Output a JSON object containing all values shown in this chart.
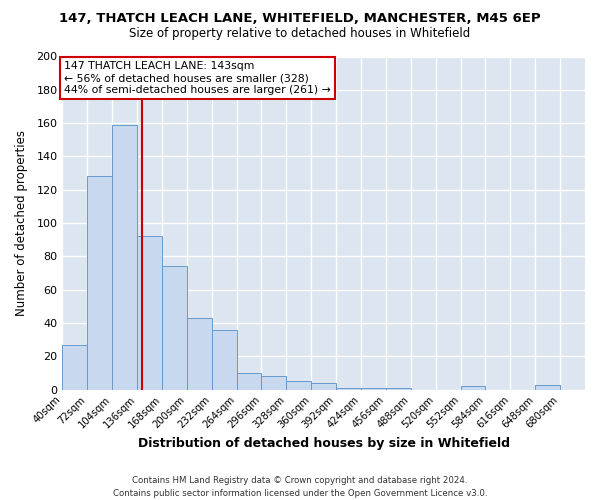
{
  "title": "147, THATCH LEACH LANE, WHITEFIELD, MANCHESTER, M45 6EP",
  "subtitle": "Size of property relative to detached houses in Whitefield",
  "xlabel": "Distribution of detached houses by size in Whitefield",
  "ylabel": "Number of detached properties",
  "bar_color": "#c8d8ee",
  "bar_edge_color": "#6699cc",
  "bin_edges": [
    40,
    72,
    104,
    136,
    168,
    200,
    232,
    264,
    296,
    328,
    360,
    392,
    424,
    456,
    488,
    520,
    552,
    584,
    616,
    648,
    680
  ],
  "bin_labels": [
    "40sqm",
    "72sqm",
    "104sqm",
    "136sqm",
    "168sqm",
    "200sqm",
    "232sqm",
    "264sqm",
    "296sqm",
    "328sqm",
    "360sqm",
    "392sqm",
    "424sqm",
    "456sqm",
    "488sqm",
    "520sqm",
    "552sqm",
    "584sqm",
    "616sqm",
    "648sqm",
    "680sqm"
  ],
  "counts": [
    27,
    128,
    159,
    92,
    74,
    43,
    36,
    10,
    8,
    5,
    4,
    1,
    1,
    1,
    0,
    0,
    2,
    0,
    0,
    3
  ],
  "vline_x": 143,
  "vline_color": "#cc0000",
  "annotation_title": "147 THATCH LEACH LANE: 143sqm",
  "annotation_line1": "← 56% of detached houses are smaller (328)",
  "annotation_line2": "44% of semi-detached houses are larger (261) →",
  "annotation_box_color": "#cc0000",
  "ylim": [
    0,
    200
  ],
  "yticks": [
    0,
    20,
    40,
    60,
    80,
    100,
    120,
    140,
    160,
    180,
    200
  ],
  "plot_bg_color": "#dde6f0",
  "fig_bg_color": "#ffffff",
  "footer_line1": "Contains HM Land Registry data © Crown copyright and database right 2024.",
  "footer_line2": "Contains public sector information licensed under the Open Government Licence v3.0."
}
